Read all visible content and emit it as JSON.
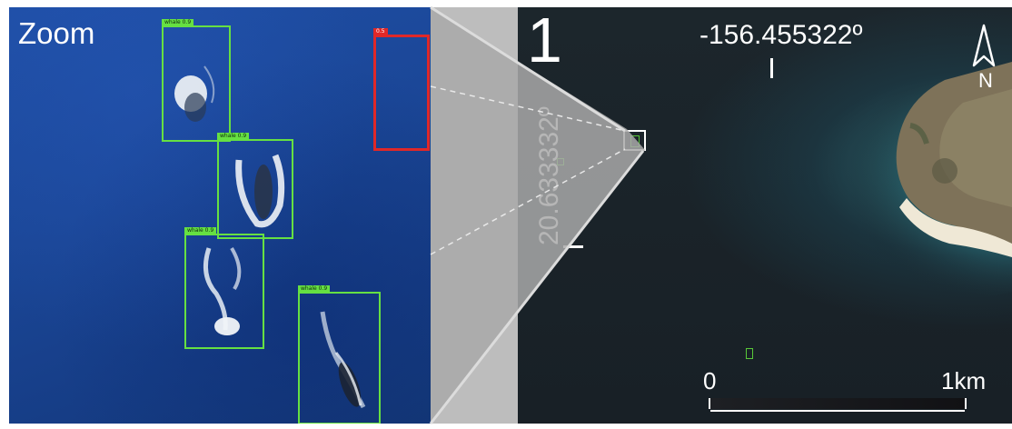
{
  "zoom_panel": {
    "label": "Zoom",
    "detections": [
      {
        "color": "green",
        "tag": "whale 0.9"
      },
      {
        "color": "green",
        "tag": "whale 0.9"
      },
      {
        "color": "green",
        "tag": "whale 0.9"
      },
      {
        "color": "green",
        "tag": "whale 0.9"
      },
      {
        "color": "red",
        "tag": "0.5"
      }
    ]
  },
  "map_panel": {
    "panel_number": "1",
    "longitude": "-156.455322º",
    "latitude": "20.633332º",
    "north_label": "N",
    "scale": {
      "start": "0",
      "end": "1km"
    }
  },
  "colors": {
    "detection_green": "#66e042",
    "detection_red": "#e02828",
    "ocean": "#1b4798"
  }
}
